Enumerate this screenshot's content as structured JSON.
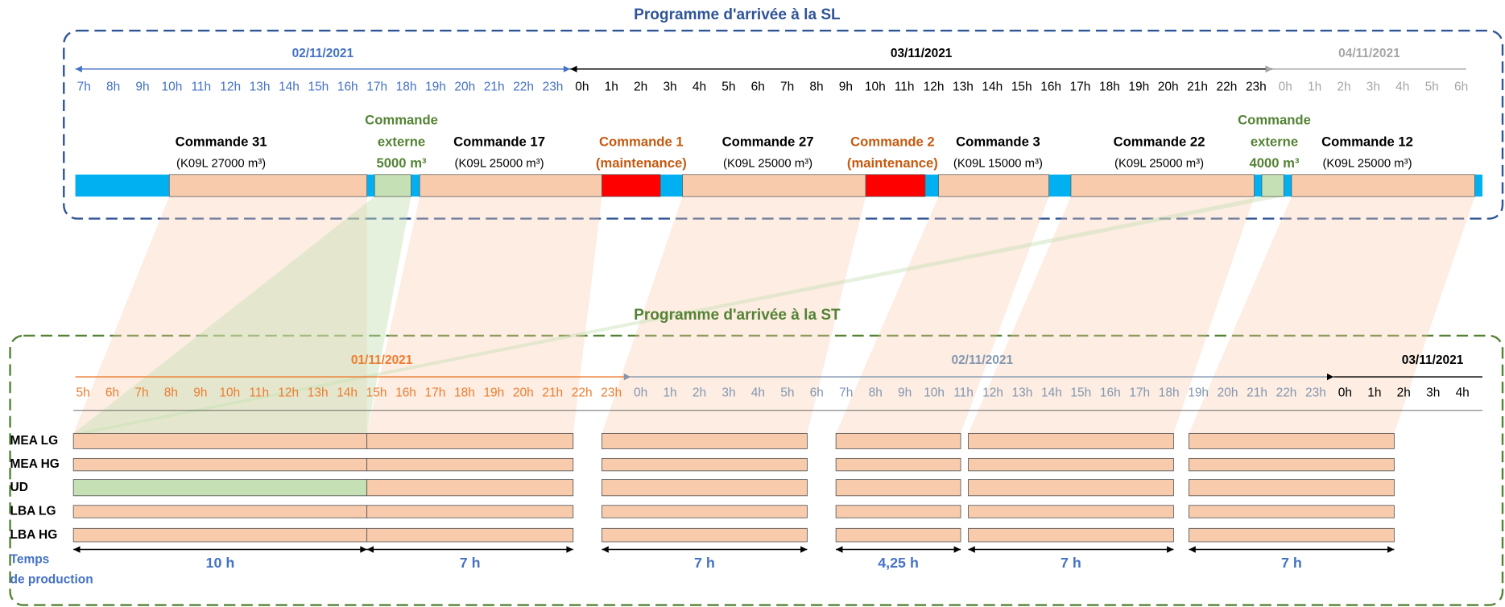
{
  "top": {
    "title": "Programme d'arrivée à la SL",
    "days": [
      {
        "date": "02/11/2021",
        "color": "#4472c4",
        "hours": [
          "7h",
          "8h",
          "9h",
          "10h",
          "11h",
          "12h",
          "13h",
          "14h",
          "15h",
          "16h",
          "17h",
          "18h",
          "19h",
          "20h",
          "21h",
          "22h",
          "23h"
        ]
      },
      {
        "date": "03/11/2021",
        "color": "#000000",
        "hours": [
          "0h",
          "1h",
          "2h",
          "3h",
          "4h",
          "5h",
          "6h",
          "7h",
          "8h",
          "9h",
          "10h",
          "11h",
          "12h",
          "13h",
          "14h",
          "15h",
          "16h",
          "17h",
          "18h",
          "19h",
          "20h",
          "21h",
          "22h",
          "23h"
        ]
      },
      {
        "date": "04/11/2021",
        "color": "#a6a6a6",
        "hours": [
          "0h",
          "1h",
          "2h",
          "3h",
          "4h",
          "5h",
          "6h"
        ]
      }
    ],
    "orders": [
      {
        "lines": [
          "Commande 31",
          "(K09L 27000 m³)"
        ]
      },
      {
        "lines": [
          "Commande",
          "externe",
          "5000 m³"
        ]
      },
      {
        "lines": [
          "Commande 17",
          "(K09L 25000 m³)"
        ]
      },
      {
        "lines": [
          "Commande 1",
          "(maintenance)"
        ]
      },
      {
        "lines": [
          "Commande 27",
          "(K09L 25000 m³)"
        ]
      },
      {
        "lines": [
          "Commande 2",
          "(maintenance)"
        ]
      },
      {
        "lines": [
          "Commande 3",
          "(K09L 15000 m³)"
        ]
      },
      {
        "lines": [
          "Commande 22",
          "(K09L 25000 m³)"
        ]
      },
      {
        "lines": [
          "Commande",
          "externe",
          "4000 m³"
        ]
      },
      {
        "lines": [
          "Commande 12",
          "(K09L 25000 m³)"
        ]
      }
    ]
  },
  "bottom": {
    "title": "Programme d'arrivée à la ST",
    "days": [
      {
        "date": "01/11/2021",
        "color": "#ed7d31",
        "hours": [
          "5h",
          "6h",
          "7h",
          "8h",
          "9h",
          "10h",
          "11h",
          "12h",
          "13h",
          "14h",
          "15h",
          "16h",
          "17h",
          "18h",
          "19h",
          "20h",
          "21h",
          "22h",
          "23h"
        ]
      },
      {
        "date": "02/11/2021",
        "color": "#8497b0",
        "hours": [
          "0h",
          "1h",
          "2h",
          "3h",
          "4h",
          "5h",
          "6h",
          "7h",
          "8h",
          "9h",
          "10h",
          "11h",
          "12h",
          "13h",
          "14h",
          "15h",
          "16h",
          "17h",
          "18h",
          "19h",
          "20h",
          "21h",
          "22h",
          "23h"
        ]
      },
      {
        "date": "03/11/2021",
        "color": "#000000",
        "hours": [
          "0h",
          "1h",
          "2h",
          "3h",
          "4h"
        ]
      }
    ],
    "rows": [
      "MEA LG",
      "MEA HG",
      "UD",
      "LBA LG",
      "LBA HG"
    ],
    "durations": [
      "10 h",
      "7 h",
      "7 h",
      "4,25 h",
      "7 h",
      "7 h"
    ],
    "footer": [
      "Temps",
      "de production"
    ]
  }
}
